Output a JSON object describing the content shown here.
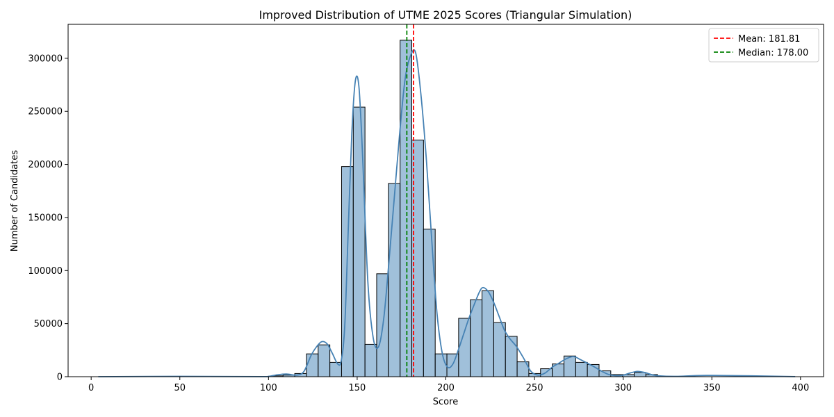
{
  "chart_data": {
    "type": "bar",
    "title": "Improved Distribution of UTME 2025 Scores (Triangular Simulation)",
    "xlabel": "Score",
    "ylabel": "Number of Candidates",
    "xlim": [
      -13,
      413
    ],
    "ylim": [
      0,
      332000
    ],
    "xticks": [
      0,
      50,
      100,
      150,
      200,
      250,
      300,
      350,
      400
    ],
    "yticks": [
      0,
      50000,
      100000,
      150000,
      200000,
      250000,
      300000
    ],
    "grid": false,
    "legend_position": "top-right",
    "bar_color": "#7ba7cc",
    "kde_color": "#4682b4",
    "bins": [
      {
        "start": 101.6,
        "end": 108.2,
        "count": 800
      },
      {
        "start": 108.2,
        "end": 114.8,
        "count": 1500
      },
      {
        "start": 114.8,
        "end": 121.4,
        "count": 3000
      },
      {
        "start": 121.4,
        "end": 128.0,
        "count": 21500
      },
      {
        "start": 128.0,
        "end": 134.6,
        "count": 30000
      },
      {
        "start": 134.6,
        "end": 141.2,
        "count": 13500
      },
      {
        "start": 141.2,
        "end": 147.8,
        "count": 198000
      },
      {
        "start": 147.8,
        "end": 154.4,
        "count": 254000
      },
      {
        "start": 154.4,
        "end": 161.0,
        "count": 30500
      },
      {
        "start": 161.0,
        "end": 167.6,
        "count": 97000
      },
      {
        "start": 167.6,
        "end": 174.2,
        "count": 182000
      },
      {
        "start": 174.2,
        "end": 180.8,
        "count": 317000
      },
      {
        "start": 180.8,
        "end": 187.4,
        "count": 223000
      },
      {
        "start": 187.4,
        "end": 194.0,
        "count": 139000
      },
      {
        "start": 194.0,
        "end": 200.6,
        "count": 21500
      },
      {
        "start": 200.6,
        "end": 207.2,
        "count": 21500
      },
      {
        "start": 207.2,
        "end": 213.8,
        "count": 55000
      },
      {
        "start": 213.8,
        "end": 220.4,
        "count": 72500
      },
      {
        "start": 220.4,
        "end": 227.0,
        "count": 81000
      },
      {
        "start": 227.0,
        "end": 233.6,
        "count": 51000
      },
      {
        "start": 233.6,
        "end": 240.2,
        "count": 38000
      },
      {
        "start": 240.2,
        "end": 246.8,
        "count": 14000
      },
      {
        "start": 246.8,
        "end": 253.4,
        "count": 3000
      },
      {
        "start": 253.4,
        "end": 260.0,
        "count": 7500
      },
      {
        "start": 260.0,
        "end": 266.6,
        "count": 12000
      },
      {
        "start": 266.6,
        "end": 273.2,
        "count": 19500
      },
      {
        "start": 273.2,
        "end": 279.8,
        "count": 13500
      },
      {
        "start": 279.8,
        "end": 286.4,
        "count": 11500
      },
      {
        "start": 286.4,
        "end": 293.0,
        "count": 5500
      },
      {
        "start": 293.0,
        "end": 299.6,
        "count": 2000
      },
      {
        "start": 299.6,
        "end": 306.2,
        "count": 2000
      },
      {
        "start": 306.2,
        "end": 312.8,
        "count": 4000
      },
      {
        "start": 312.8,
        "end": 319.4,
        "count": 2000
      }
    ],
    "kde": {
      "x": [
        4,
        50,
        95,
        100,
        104,
        110,
        116,
        120,
        124,
        127,
        130,
        133,
        136,
        139,
        141,
        143,
        145,
        147,
        149,
        151,
        153,
        156,
        159,
        162,
        165,
        168,
        171,
        174,
        177,
        180,
        183,
        186,
        189,
        192,
        195,
        198,
        201,
        204,
        207,
        210,
        213,
        216,
        219,
        221,
        224,
        227,
        230,
        233,
        236,
        240,
        244,
        248,
        252,
        256,
        260,
        264,
        268,
        272,
        276,
        280,
        284,
        288,
        292,
        296,
        300,
        304,
        308,
        312,
        316,
        320,
        330,
        350,
        397
      ],
      "y": [
        0,
        300,
        100,
        300,
        1500,
        2500,
        1500,
        5000,
        20000,
        28000,
        33000,
        31000,
        22000,
        12000,
        15000,
        48000,
        140000,
        230000,
        279000,
        273000,
        210000,
        90000,
        37000,
        28000,
        55000,
        110000,
        170000,
        230000,
        280000,
        302000,
        305000,
        265000,
        205000,
        130000,
        60000,
        22000,
        9000,
        12000,
        25000,
        40000,
        55000,
        68000,
        80000,
        84000,
        80000,
        70000,
        57000,
        44000,
        36000,
        28000,
        17000,
        5000,
        1500,
        3500,
        9000,
        13000,
        17000,
        19000,
        16000,
        12500,
        9000,
        5000,
        2000,
        1000,
        1500,
        3500,
        5000,
        4000,
        2000,
        800,
        300,
        1200,
        100
      ]
    },
    "lines": [
      {
        "name": "Mean: 181.81",
        "value": 181.81,
        "color": "#ff0000"
      },
      {
        "name": "Median: 178.00",
        "value": 178.0,
        "color": "#008000"
      }
    ]
  }
}
